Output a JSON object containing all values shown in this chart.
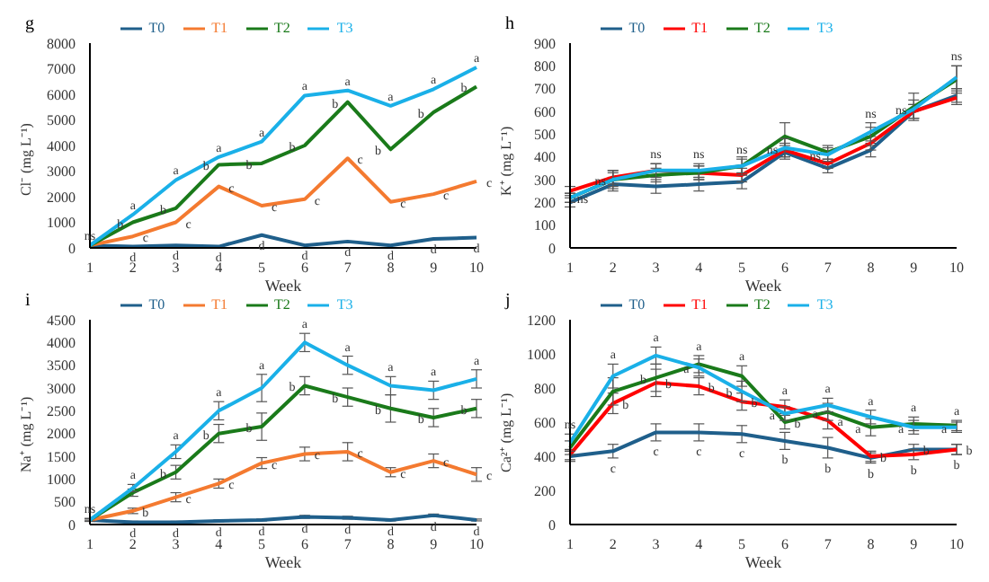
{
  "chart_data": [
    {
      "type": "line",
      "title": "g",
      "xlabel": "Week",
      "ylabel": "Cl⁻ (mg L⁻¹)",
      "categories": [
        "1",
        "2",
        "3",
        "4",
        "5",
        "6",
        "7",
        "8",
        "9",
        "10"
      ],
      "ylim": [
        0,
        8000
      ],
      "yticks": [
        0,
        1000,
        2000,
        3000,
        4000,
        5000,
        6000,
        7000,
        8000
      ],
      "legend": "top",
      "line_style": "solid",
      "series": [
        {
          "name": "T0",
          "color": "#1f5f8b",
          "values": [
            100,
            50,
            100,
            50,
            500,
            100,
            250,
            100,
            350,
            400
          ],
          "value_labels": [
            null,
            "d",
            "d",
            "d",
            "d",
            "d",
            "d",
            "d",
            "d",
            "d"
          ]
        },
        {
          "name": "T1",
          "color": "#f47a30",
          "values": [
            100,
            450,
            1000,
            2400,
            1650,
            1900,
            3500,
            1800,
            2100,
            2600
          ],
          "value_labels": [
            null,
            "c",
            "c",
            "c",
            "c",
            "c",
            "c",
            "c",
            "c",
            "c"
          ]
        },
        {
          "name": "T2",
          "color": "#1a7a1a",
          "values": [
            100,
            1000,
            1550,
            3250,
            3300,
            4000,
            5700,
            3850,
            5300,
            6300
          ],
          "value_labels": [
            null,
            "b",
            "b",
            "b",
            "b",
            "b",
            "b",
            "b",
            "b",
            "b"
          ]
        },
        {
          "name": "T3",
          "color": "#1ab0e8",
          "values": [
            100,
            1300,
            2650,
            3550,
            4150,
            5950,
            6150,
            5550,
            6200,
            7050
          ],
          "value_labels": [
            "ns",
            "a",
            "a",
            "a",
            "a",
            "a",
            "a",
            "a",
            "a",
            "a"
          ]
        }
      ]
    },
    {
      "type": "line",
      "title": "h",
      "xlabel": "Week",
      "ylabel": "K⁺ (mg L⁻¹)",
      "categories": [
        "1",
        "2",
        "3",
        "4",
        "5",
        "6",
        "7",
        "8",
        "9",
        "10"
      ],
      "ylim": [
        0,
        900
      ],
      "yticks": [
        0,
        100,
        200,
        300,
        400,
        500,
        600,
        700,
        800,
        900
      ],
      "legend": "top",
      "line_style": "solid",
      "series": [
        {
          "name": "T0",
          "color": "#1f5f8b",
          "values": [
            200,
            280,
            270,
            280,
            290,
            420,
            350,
            430,
            600,
            670
          ],
          "errors": [
            20,
            30,
            30,
            30,
            30,
            30,
            20,
            30,
            30,
            30
          ]
        },
        {
          "name": "T1",
          "color": "#ff0000",
          "values": [
            250,
            310,
            340,
            330,
            320,
            430,
            370,
            460,
            600,
            660
          ],
          "errors": [
            20,
            30,
            30,
            30,
            30,
            30,
            20,
            30,
            30,
            30
          ]
        },
        {
          "name": "T2",
          "color": "#1a7a1a",
          "values": [
            220,
            300,
            320,
            330,
            360,
            490,
            420,
            490,
            620,
            740
          ],
          "errors": [
            20,
            40,
            30,
            30,
            40,
            60,
            30,
            40,
            60,
            60
          ]
        },
        {
          "name": "T3",
          "color": "#1ab0e8",
          "values": [
            220,
            300,
            340,
            340,
            360,
            440,
            410,
            510,
            610,
            750
          ],
          "errors": [
            20,
            30,
            30,
            30,
            30,
            40,
            30,
            40,
            40,
            50
          ],
          "value_labels": [
            "ns",
            "ns",
            "ns",
            "ns",
            "ns",
            "ns",
            "ns",
            "ns",
            "ns",
            "ns"
          ]
        }
      ]
    },
    {
      "type": "line",
      "title": "i",
      "xlabel": "Week",
      "ylabel": "Na⁺ (mg L⁻¹)",
      "categories": [
        "1",
        "2",
        "3",
        "4",
        "5",
        "6",
        "7",
        "8",
        "9",
        "10"
      ],
      "ylim": [
        0,
        4500
      ],
      "yticks": [
        0,
        500,
        1000,
        1500,
        2000,
        2500,
        3000,
        3500,
        4000,
        4500
      ],
      "legend": "top",
      "line_style": "solid",
      "series": [
        {
          "name": "T0",
          "color": "#1f5f8b",
          "values": [
            100,
            50,
            50,
            80,
            100,
            170,
            150,
            100,
            200,
            100
          ],
          "errors": [
            20,
            20,
            20,
            20,
            20,
            30,
            30,
            20,
            30,
            20
          ],
          "value_labels": [
            null,
            "d",
            "d",
            "d",
            "d",
            "d",
            "d",
            "d",
            "d",
            "d"
          ]
        },
        {
          "name": "T1",
          "color": "#f47a30",
          "values": [
            100,
            300,
            600,
            900,
            1350,
            1550,
            1600,
            1150,
            1400,
            1100
          ],
          "errors": [
            30,
            60,
            100,
            100,
            120,
            150,
            200,
            100,
            150,
            150
          ],
          "value_labels": [
            null,
            "b",
            "c",
            "c",
            "c",
            "c",
            "c",
            "c",
            "c",
            "c"
          ]
        },
        {
          "name": "T2",
          "color": "#1a7a1a",
          "values": [
            100,
            700,
            1150,
            2000,
            2150,
            3050,
            2800,
            2550,
            2350,
            2550
          ],
          "errors": [
            30,
            80,
            150,
            200,
            300,
            200,
            200,
            300,
            200,
            200
          ],
          "value_labels": [
            null,
            null,
            "b",
            "b",
            "b",
            "b",
            "b",
            "b",
            "b",
            "b"
          ]
        },
        {
          "name": "T3",
          "color": "#1ab0e8",
          "values": [
            100,
            800,
            1600,
            2500,
            3000,
            4000,
            3500,
            3050,
            2950,
            3200
          ],
          "errors": [
            30,
            80,
            150,
            200,
            300,
            200,
            200,
            200,
            200,
            200
          ],
          "value_labels": [
            "ns",
            "a",
            "a",
            "a",
            "a",
            "a",
            "a",
            "a",
            "a",
            "a"
          ]
        }
      ]
    },
    {
      "type": "line",
      "title": "j",
      "xlabel": "Week",
      "ylabel": "Ca²⁺ (mg L⁻¹)",
      "categories": [
        "1",
        "2",
        "3",
        "4",
        "5",
        "6",
        "7",
        "8",
        "9",
        "10"
      ],
      "ylim": [
        0,
        1200
      ],
      "yticks": [
        0,
        200,
        400,
        600,
        800,
        1000,
        1200
      ],
      "legend": "top",
      "line_style": "solid",
      "series": [
        {
          "name": "T0",
          "color": "#1f5f8b",
          "values": [
            400,
            430,
            540,
            540,
            530,
            490,
            450,
            390,
            440,
            440
          ],
          "errors": [
            30,
            40,
            50,
            50,
            50,
            50,
            60,
            30,
            30,
            30
          ],
          "value_labels": [
            null,
            "c",
            "c",
            "c",
            "c",
            "b",
            "b",
            "b",
            "b",
            "b"
          ]
        },
        {
          "name": "T1",
          "color": "#ff0000",
          "values": [
            410,
            710,
            830,
            810,
            720,
            690,
            610,
            400,
            410,
            440
          ],
          "errors": [
            30,
            60,
            80,
            50,
            50,
            40,
            50,
            30,
            30,
            30
          ],
          "value_labels": [
            null,
            "b",
            "b",
            "b",
            "b",
            "a",
            "a",
            "b",
            "b",
            "b"
          ]
        },
        {
          "name": "T2",
          "color": "#1a7a1a",
          "values": [
            450,
            780,
            860,
            940,
            870,
            600,
            660,
            570,
            590,
            580
          ],
          "errors": [
            40,
            80,
            80,
            50,
            60,
            40,
            50,
            50,
            40,
            30
          ],
          "value_labels": [
            null,
            null,
            "b",
            "a",
            "a",
            "b",
            "a",
            "a",
            "a",
            "a"
          ]
        },
        {
          "name": "T3",
          "color": "#1ab0e8",
          "values": [
            480,
            870,
            990,
            920,
            780,
            650,
            700,
            630,
            570,
            570
          ],
          "errors": [
            50,
            70,
            50,
            50,
            60,
            40,
            40,
            40,
            40,
            30
          ],
          "value_labels": [
            "ns",
            "a",
            "a",
            "a",
            "b",
            "a",
            "a",
            "a",
            "a",
            "a"
          ]
        }
      ]
    }
  ]
}
